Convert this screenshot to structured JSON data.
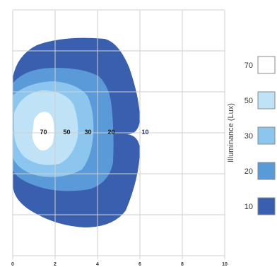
{
  "chart_data": {
    "type": "contour",
    "xlim": [
      0,
      10
    ],
    "x_ticks": [
      "0",
      "2",
      "4",
      "6",
      "8",
      "10"
    ],
    "grid": true,
    "levels": [
      {
        "value": 10,
        "label": "10",
        "color": "#3a5fae"
      },
      {
        "value": 20,
        "label": "20",
        "color": "#5a9ad8"
      },
      {
        "value": 30,
        "label": "30",
        "color": "#8cc6ee"
      },
      {
        "value": 50,
        "label": "50",
        "color": "#bfe2f7"
      },
      {
        "value": 70,
        "label": "70",
        "color": "#ffffff"
      }
    ],
    "contour_labels": [
      {
        "text": "70",
        "x": 1.45
      },
      {
        "text": "50",
        "x": 2.55
      },
      {
        "text": "30",
        "x": 3.55
      },
      {
        "text": "20",
        "x": 4.65
      },
      {
        "text": "10",
        "x": 6.25
      }
    ],
    "legend": {
      "title": "Illuminance (Lux)",
      "placement": "right",
      "order": [
        70,
        50,
        30,
        20,
        10
      ]
    }
  }
}
